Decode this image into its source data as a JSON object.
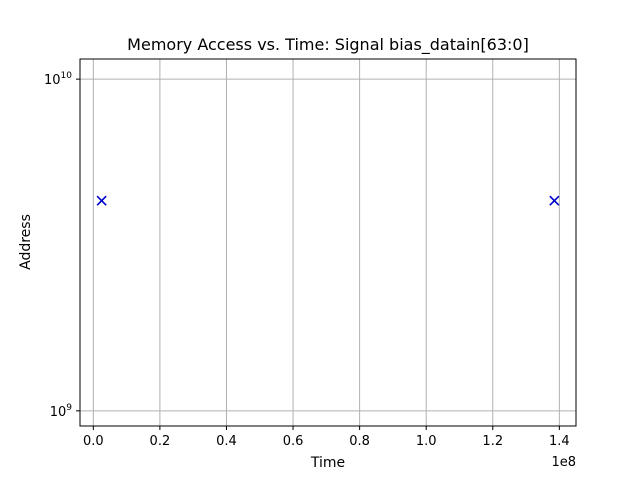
{
  "chart_data": {
    "type": "scatter",
    "title": "Memory Access vs. Time: Signal bias_datain[63:0]",
    "xlabel": "Time",
    "ylabel": "Address",
    "x_offset_label": "1e8",
    "x_scale": 100000000,
    "xlim": [
      -4000000,
      145000000
    ],
    "x_ticks": [
      0,
      20000000,
      40000000,
      60000000,
      80000000,
      100000000,
      120000000,
      140000000
    ],
    "x_tick_labels": [
      "0.0",
      "0.2",
      "0.4",
      "0.6",
      "0.8",
      "1.0",
      "1.2",
      "1.4"
    ],
    "y_scale": "log",
    "ylim": [
      900000000,
      11500000000
    ],
    "y_ticks": [
      {
        "value": 1000000000,
        "base": "10",
        "exp": "9"
      },
      {
        "value": 10000000000,
        "base": "10",
        "exp": "10"
      }
    ],
    "grid": true,
    "marker": "x",
    "color": "#0000cc",
    "points": [
      {
        "x": 2500000,
        "y": 4300000000
      },
      {
        "x": 138500000,
        "y": 4300000000
      }
    ]
  }
}
